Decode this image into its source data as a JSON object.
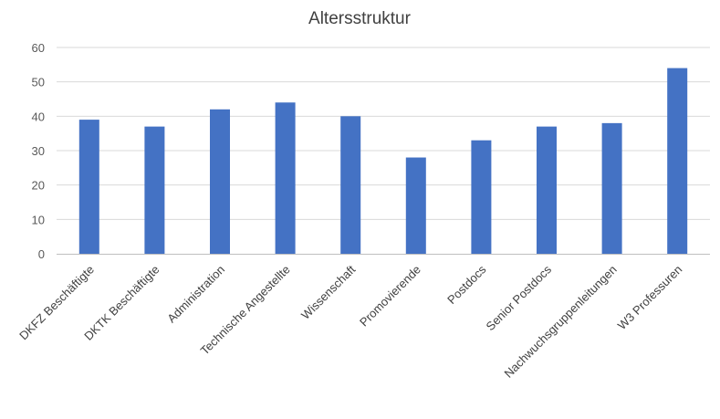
{
  "chart_data": {
    "type": "bar",
    "title": "Altersstruktur",
    "xlabel": "",
    "ylabel": "",
    "categories": [
      "DKFZ Beschäftigte",
      "DKTK Beschäftigte",
      "Administration",
      "Technische Angestellte",
      "Wissenschaft",
      "Promovierende",
      "Postdocs",
      "Senior Postdocs",
      "Nachwuchsgruppenleitungen",
      "W3 Professuren"
    ],
    "values": [
      39,
      37,
      42,
      44,
      40,
      28,
      33,
      37,
      38,
      54
    ],
    "ylim": [
      0,
      60
    ],
    "yticks": [
      0,
      10,
      20,
      30,
      40,
      50,
      60
    ],
    "grid": true,
    "legend": "none",
    "bar_color": "#4472C4"
  }
}
